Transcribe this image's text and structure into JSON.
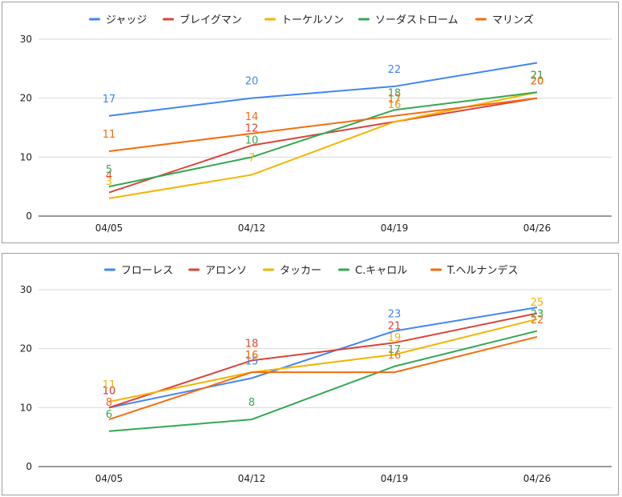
{
  "chart_data": [
    {
      "type": "line",
      "categories": [
        "04/05",
        "04/12",
        "04/19",
        "04/26"
      ],
      "ylim": [
        0,
        30
      ],
      "yticks": [
        0,
        10,
        20,
        30
      ],
      "grid": true,
      "legend_position": "top",
      "series": [
        {
          "name": "ジャッジ",
          "color": "#4285f4",
          "values": [
            17,
            20,
            22,
            26
          ],
          "labels": [
            17,
            20,
            22,
            null
          ]
        },
        {
          "name": "ブレイグマン",
          "color": "#db4437",
          "values": [
            4,
            12,
            16,
            20
          ],
          "labels": [
            4,
            12,
            16,
            20
          ]
        },
        {
          "name": "トーケルソン",
          "color": "#f4b400",
          "values": [
            3,
            7,
            16,
            21
          ],
          "labels": [
            3,
            7,
            16,
            21
          ]
        },
        {
          "name": "ソーダストローム",
          "color": "#34a853",
          "values": [
            5,
            10,
            18,
            21
          ],
          "labels": [
            5,
            10,
            18,
            21
          ]
        },
        {
          "name": "マリンズ",
          "color": "#f46d0f",
          "values": [
            11,
            14,
            17,
            20
          ],
          "labels": [
            11,
            14,
            17,
            20
          ]
        }
      ]
    },
    {
      "type": "line",
      "categories": [
        "04/05",
        "04/12",
        "04/19",
        "04/26"
      ],
      "ylim": [
        0,
        30
      ],
      "yticks": [
        0,
        10,
        20,
        30
      ],
      "grid": true,
      "legend_position": "top",
      "series": [
        {
          "name": "フローレス",
          "color": "#4285f4",
          "values": [
            10,
            15,
            23,
            27
          ],
          "labels": [
            10,
            15,
            23,
            null
          ]
        },
        {
          "name": "アロンソ",
          "color": "#db4437",
          "values": [
            10,
            18,
            21,
            26
          ],
          "labels": [
            10,
            18,
            21,
            null
          ]
        },
        {
          "name": "タッカー",
          "color": "#f4b400",
          "values": [
            11,
            16,
            19,
            25
          ],
          "labels": [
            11,
            16,
            19,
            25
          ]
        },
        {
          "name": "C.キャロル",
          "color": "#34a853",
          "values": [
            6,
            8,
            17,
            23
          ],
          "labels": [
            6,
            8,
            17,
            23
          ]
        },
        {
          "name": "T.ヘルナンデス",
          "color": "#f46d0f",
          "values": [
            8,
            16,
            16,
            22
          ],
          "labels": [
            8,
            16,
            16,
            22
          ]
        }
      ]
    }
  ]
}
